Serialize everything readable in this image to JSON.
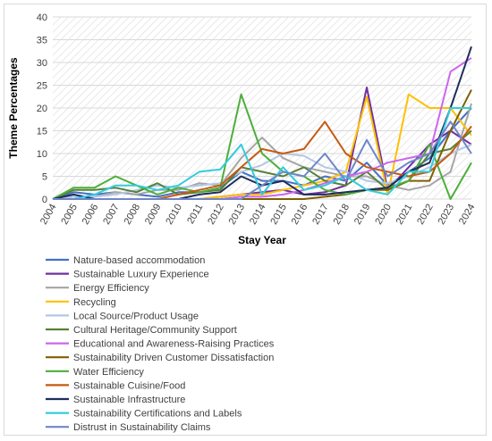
{
  "chart_data": {
    "type": "line",
    "title": "",
    "xlabel": "Stay Year",
    "ylabel": "Theme Percentages",
    "ylim": [
      0,
      40
    ],
    "yticks": [
      0,
      5,
      10,
      15,
      20,
      25,
      30,
      35,
      40
    ],
    "grid": true,
    "legend_position": "bottom",
    "categories": [
      "2004",
      "2005",
      "2006",
      "2007",
      "2008",
      "2009",
      "2010",
      "2011",
      "2012",
      "2013",
      "2014",
      "2015",
      "2016",
      "2017",
      "2018",
      "2019",
      "2020",
      "2021",
      "2022",
      "2023",
      "2024"
    ],
    "series": [
      {
        "name": "Nature-based accommodation",
        "color": "#4472c4",
        "values": [
          0,
          1.5,
          1.0,
          1.5,
          1.0,
          0.5,
          1.5,
          1.5,
          2.5,
          6.0,
          4.0,
          4.0,
          3.0,
          5.0,
          4.0,
          8.0,
          3.0,
          6.0,
          9.0,
          15.0,
          20.0
        ]
      },
      {
        "name": "Sustainable Luxury Experience",
        "color": "#7030a0",
        "values": [
          0,
          0,
          0,
          0,
          0,
          0,
          0,
          0,
          0.5,
          1.0,
          1.5,
          2.0,
          1.0,
          1.5,
          3.0,
          24.5,
          2.0,
          7.0,
          12.0,
          15.0,
          12.0
        ]
      },
      {
        "name": "Energy Efficiency",
        "color": "#a5a5a5",
        "values": [
          0,
          0.5,
          0.5,
          1.5,
          1.0,
          2.0,
          2.0,
          3.5,
          3.0,
          9.0,
          13.5,
          9.0,
          7.0,
          6.0,
          5.0,
          5.0,
          3.0,
          2.0,
          3.0,
          6.0,
          21.0
        ]
      },
      {
        "name": "Recycling",
        "color": "#ffc000",
        "values": [
          0,
          0,
          0,
          0,
          0,
          0,
          0,
          0,
          0.5,
          1.0,
          1.0,
          2.0,
          3.0,
          4.0,
          6.0,
          22.5,
          1.0,
          23.0,
          20.0,
          20.0,
          14.0
        ]
      },
      {
        "name": "Local Source/Product Usage",
        "color": "#b4c7e7",
        "values": [
          0,
          0.5,
          0.5,
          1.0,
          2.0,
          3.0,
          2.5,
          3.0,
          3.5,
          6.0,
          7.5,
          10.0,
          9.5,
          7.0,
          6.0,
          4.0,
          3.5,
          5.0,
          7.0,
          10.0,
          12.0
        ]
      },
      {
        "name": "Cultural Heritage/Community Support",
        "color": "#548235",
        "values": [
          0,
          2.0,
          2.0,
          2.5,
          1.5,
          3.5,
          1.0,
          1.5,
          2.0,
          7.0,
          6.0,
          5.0,
          7.0,
          4.0,
          3.0,
          6.0,
          2.0,
          4.0,
          10.0,
          11.0,
          15.0
        ]
      },
      {
        "name": "Educational and Awareness-Raising Practices",
        "color": "#cc66ee",
        "values": [
          0,
          0,
          0,
          0,
          0,
          0,
          0,
          0,
          0,
          0.5,
          0.5,
          1.0,
          2.0,
          3.5,
          5.0,
          6.0,
          8.0,
          9.0,
          10.0,
          28.0,
          31.0
        ]
      },
      {
        "name": "Sustainability Driven Customer Dissatisfaction",
        "color": "#7f6000",
        "values": [
          0,
          0,
          0,
          0,
          0,
          0,
          0,
          0,
          0,
          0,
          0,
          0,
          0,
          0.5,
          1.0,
          2.0,
          2.0,
          4.0,
          4.0,
          15.0,
          24.0
        ]
      },
      {
        "name": "Water Efficiency",
        "color": "#4caf3a",
        "values": [
          0,
          2.5,
          2.5,
          5.0,
          3.0,
          1.0,
          2.5,
          1.5,
          2.5,
          23.0,
          10.0,
          6.0,
          5.0,
          2.0,
          1.0,
          2.0,
          2.5,
          4.0,
          12.0,
          0,
          8.0
        ]
      },
      {
        "name": "Sustainable Cuisine/Food",
        "color": "#c55a11",
        "values": [
          0,
          0,
          0,
          0,
          0,
          0,
          1.0,
          2.0,
          3.0,
          7.0,
          11.0,
          10.0,
          11.0,
          17.0,
          10.0,
          7.0,
          6.0,
          5.0,
          6.0,
          10.0,
          16.0
        ]
      },
      {
        "name": "Sustainable Infrastructure",
        "color": "#1f2d5a",
        "values": [
          0,
          1.0,
          0,
          0,
          0,
          0,
          0,
          1.0,
          1.5,
          5.0,
          3.0,
          4.0,
          1.0,
          1.0,
          1.5,
          2.0,
          2.5,
          6.0,
          8.0,
          20.0,
          33.5
        ]
      },
      {
        "name": "Sustainability Certifications and Labels",
        "color": "#33ccdd",
        "values": [
          0,
          0,
          1.0,
          3.0,
          3.0,
          2.0,
          3.0,
          6.0,
          6.5,
          12.0,
          1.0,
          7.0,
          2.0,
          3.0,
          5.0,
          2.0,
          1.0,
          6.0,
          6.0,
          20.0,
          20.0
        ]
      },
      {
        "name": "Distrust in Sustainability Claims",
        "color": "#6f86c8",
        "values": [
          0,
          0,
          0,
          0,
          0,
          0,
          0,
          0,
          0,
          0,
          3.0,
          6.0,
          5.0,
          10.0,
          4.0,
          13.0,
          5.0,
          8.0,
          10.0,
          17.0,
          10.0
        ]
      }
    ]
  }
}
